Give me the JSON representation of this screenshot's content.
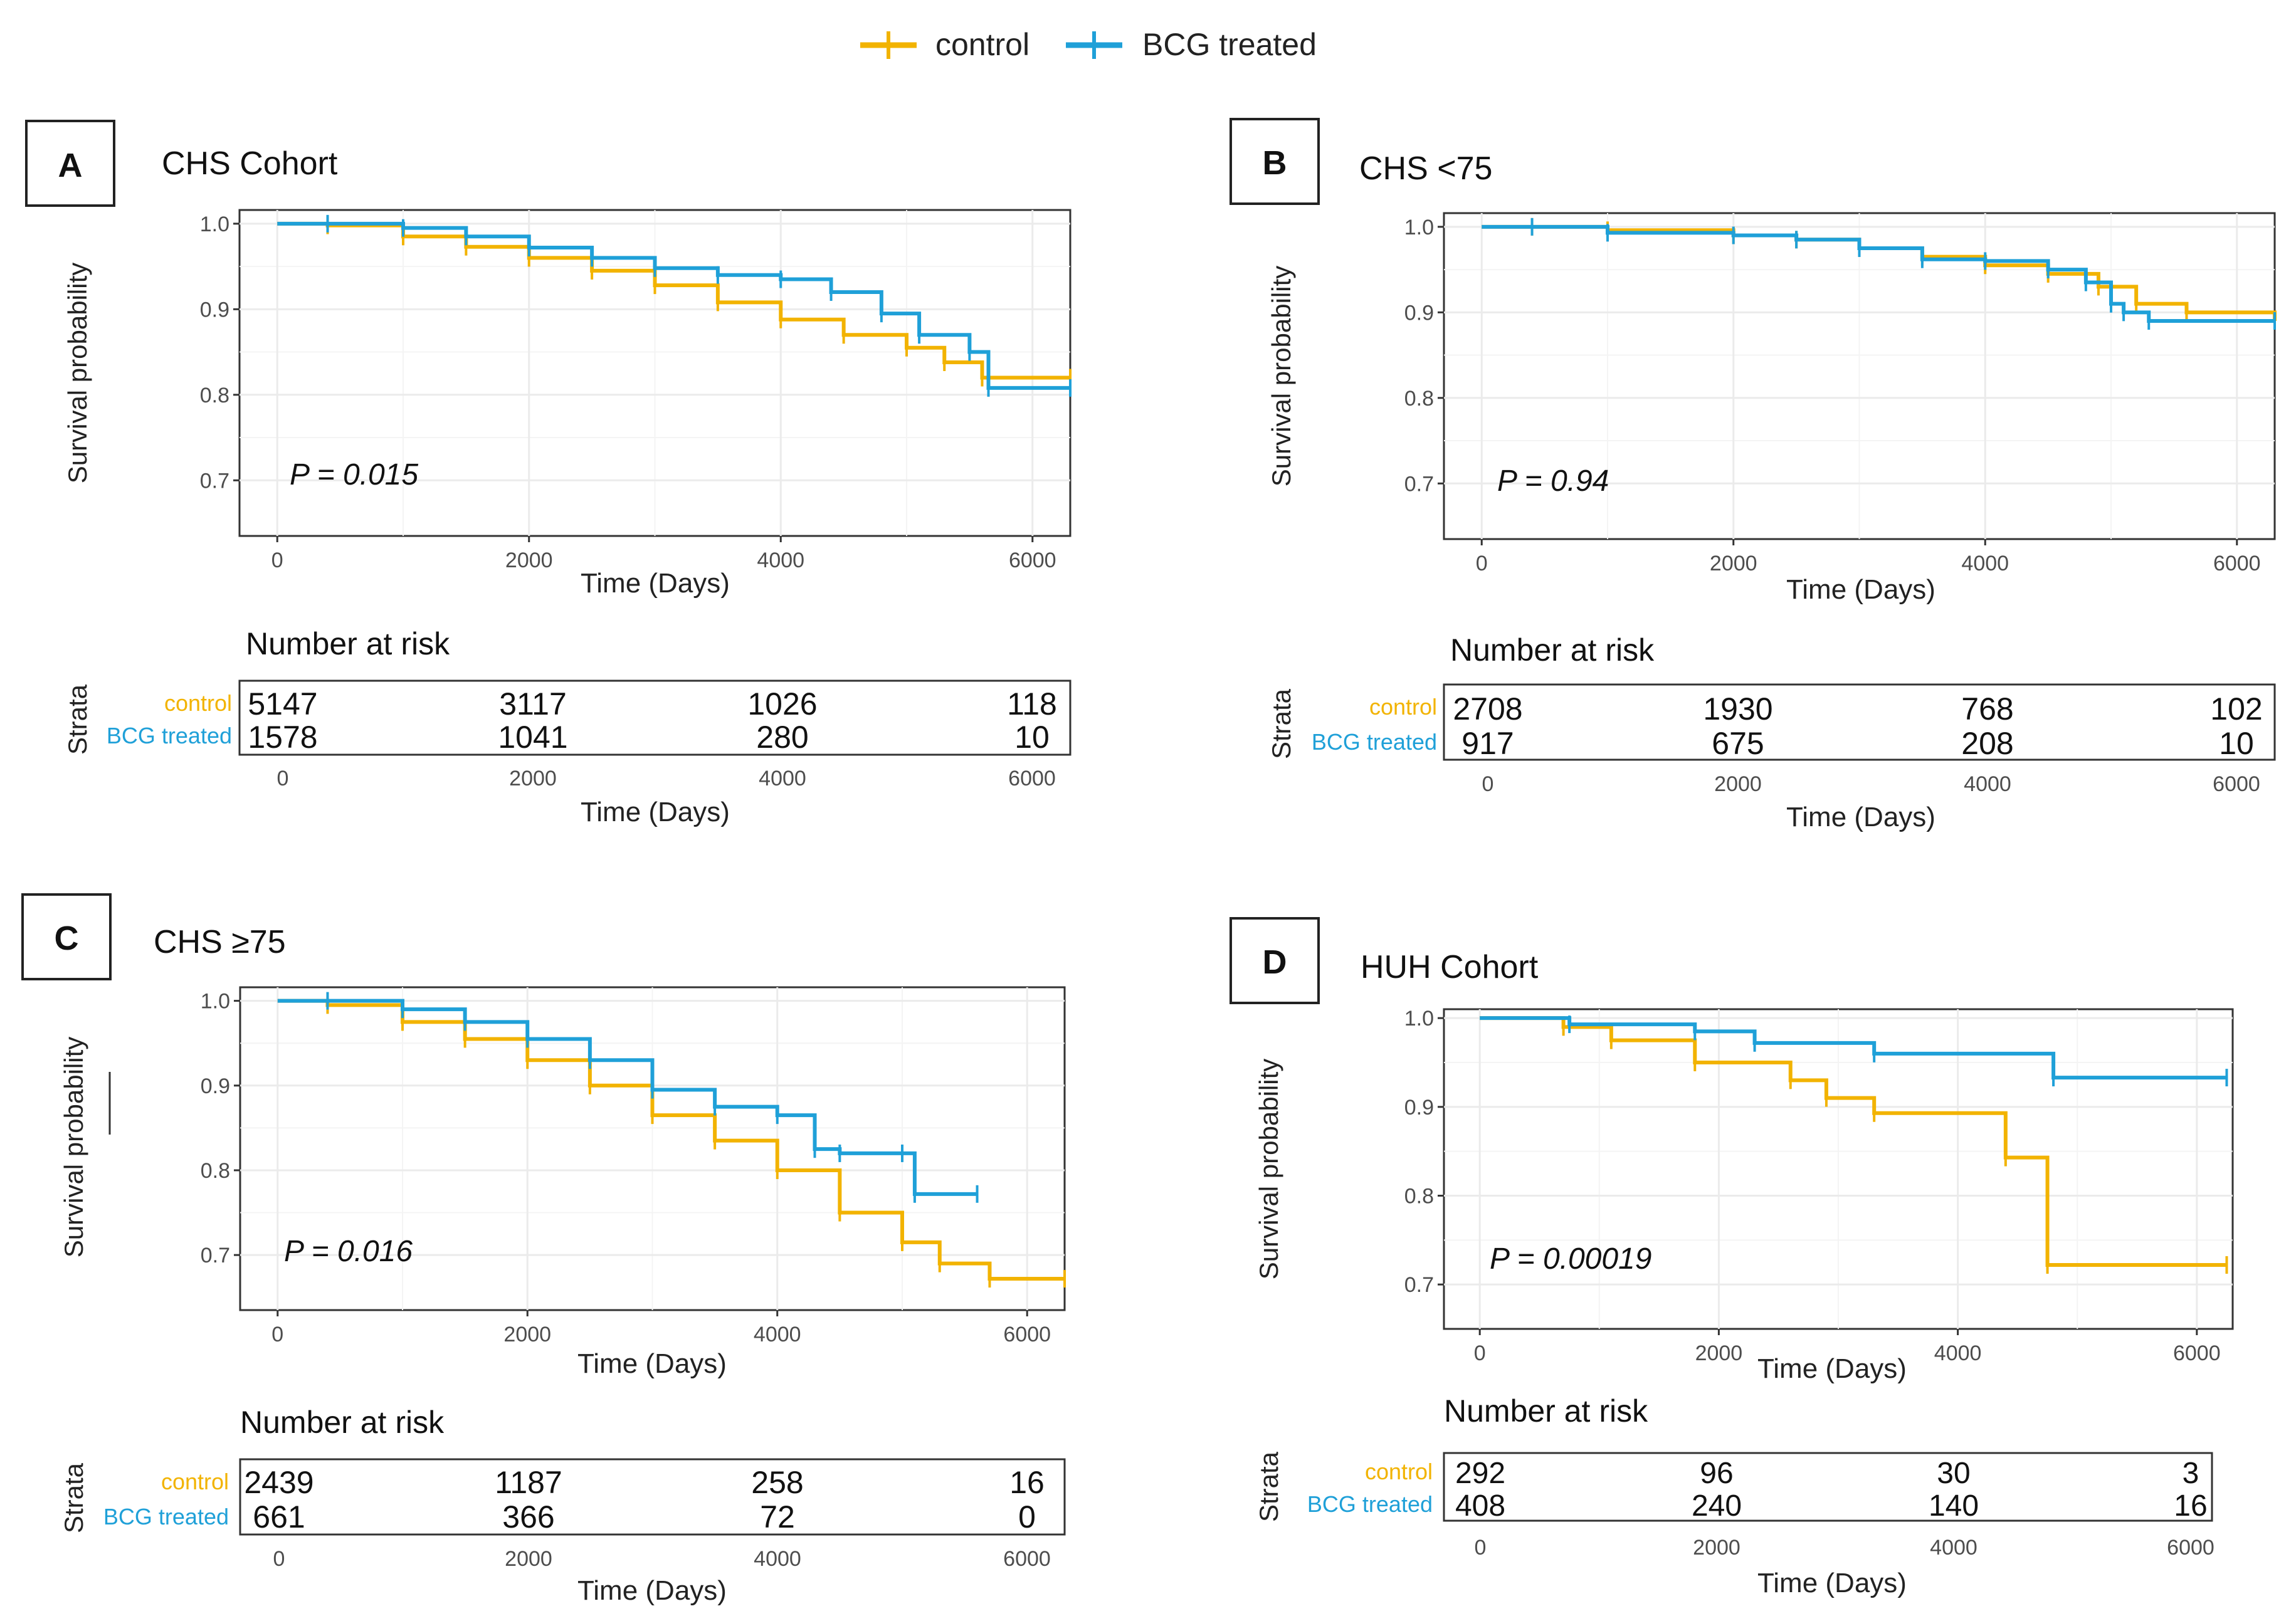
{
  "legend": {
    "items": [
      {
        "label": "control",
        "color": "#F2B300"
      },
      {
        "label": "BCG treated",
        "color": "#1FA0D8"
      }
    ]
  },
  "colors": {
    "control": "#F2B300",
    "bcg": "#1FA0D8",
    "grid": "#EBEBEB",
    "axis_text": "#4D4D4D",
    "frame": "#333333"
  },
  "risk_table_common": {
    "heading": "Number at risk",
    "strata_label": "Strata",
    "row_labels": [
      "control",
      "BCG treated"
    ],
    "xlabel": "Time (Days)",
    "x_ticks": [
      0,
      2000,
      4000,
      6000
    ]
  },
  "chart_data": [
    {
      "panel": "A",
      "type": "line",
      "title": "CHS Cohort",
      "xlabel": "Time (Days)",
      "ylabel": "Survival probability",
      "xlim": [
        -300,
        6300
      ],
      "ylim": [
        0.635,
        1.016
      ],
      "x_ticks": [
        0,
        2000,
        4000,
        6000
      ],
      "y_ticks": [
        1.0,
        0.9,
        0.8,
        0.7
      ],
      "p_value": "P = 0.015",
      "series": [
        {
          "name": "control",
          "x": [
            0,
            400,
            1000,
            1500,
            2000,
            2500,
            3000,
            3500,
            4000,
            4500,
            5000,
            5300,
            5600,
            6300
          ],
          "y": [
            1.0,
            0.998,
            0.985,
            0.973,
            0.96,
            0.945,
            0.928,
            0.908,
            0.888,
            0.87,
            0.855,
            0.838,
            0.82,
            0.82
          ]
        },
        {
          "name": "BCG treated",
          "x": [
            0,
            400,
            1000,
            1500,
            2000,
            2500,
            3000,
            3500,
            4000,
            4400,
            4800,
            5100,
            5500,
            5650,
            6300
          ],
          "y": [
            1.0,
            1.0,
            0.995,
            0.985,
            0.972,
            0.96,
            0.948,
            0.94,
            0.935,
            0.92,
            0.895,
            0.87,
            0.85,
            0.808,
            0.808
          ]
        }
      ],
      "risk_table": {
        "times": [
          0,
          2000,
          4000,
          6000
        ],
        "control": [
          5147,
          3117,
          1026,
          118
        ],
        "bcg_treated": [
          1578,
          1041,
          280,
          10
        ]
      }
    },
    {
      "panel": "B",
      "type": "line",
      "title": "CHS <75",
      "xlabel": "Time (Days)",
      "ylabel": "Survival probability",
      "xlim": [
        -300,
        6300
      ],
      "ylim": [
        0.635,
        1.016
      ],
      "x_ticks": [
        0,
        2000,
        4000,
        6000
      ],
      "y_ticks": [
        1.0,
        0.9,
        0.8,
        0.7
      ],
      "p_value": "P = 0.94",
      "series": [
        {
          "name": "control",
          "x": [
            0,
            400,
            1000,
            2000,
            2500,
            3000,
            3500,
            4000,
            4500,
            4900,
            5200,
            5600,
            6300
          ],
          "y": [
            1.0,
            1.0,
            0.996,
            0.99,
            0.985,
            0.975,
            0.965,
            0.955,
            0.945,
            0.93,
            0.91,
            0.9,
            0.89
          ]
        },
        {
          "name": "BCG treated",
          "x": [
            0,
            400,
            1000,
            2000,
            2500,
            3000,
            3500,
            4000,
            4500,
            4800,
            5000,
            5100,
            5300,
            6300
          ],
          "y": [
            1.0,
            1.0,
            0.993,
            0.99,
            0.985,
            0.975,
            0.962,
            0.96,
            0.95,
            0.935,
            0.91,
            0.9,
            0.89,
            0.89
          ]
        }
      ],
      "risk_table": {
        "times": [
          0,
          2000,
          4000,
          6000
        ],
        "control": [
          2708,
          1930,
          768,
          102
        ],
        "bcg_treated": [
          917,
          675,
          208,
          10
        ]
      }
    },
    {
      "panel": "C",
      "type": "line",
      "title": "CHS ≥75",
      "xlabel": "Time (Days)",
      "ylabel": "Survival probability",
      "xlim": [
        -300,
        6300
      ],
      "ylim": [
        0.635,
        1.016
      ],
      "x_ticks": [
        0,
        2000,
        4000,
        6000
      ],
      "y_ticks": [
        1.0,
        0.9,
        0.8,
        0.7
      ],
      "p_value": "P = 0.016",
      "series": [
        {
          "name": "control",
          "x": [
            0,
            400,
            1000,
            1500,
            2000,
            2500,
            3000,
            3500,
            4000,
            4500,
            5000,
            5300,
            5700,
            6300
          ],
          "y": [
            1.0,
            0.995,
            0.975,
            0.955,
            0.93,
            0.9,
            0.865,
            0.835,
            0.8,
            0.75,
            0.715,
            0.69,
            0.672,
            0.672
          ]
        },
        {
          "name": "BCG treated",
          "x": [
            0,
            400,
            1000,
            1500,
            2000,
            2500,
            3000,
            3500,
            4000,
            4300,
            4500,
            5000,
            5100,
            5600
          ],
          "y": [
            1.0,
            1.0,
            0.99,
            0.975,
            0.955,
            0.93,
            0.895,
            0.875,
            0.865,
            0.825,
            0.82,
            0.82,
            0.772,
            0.772
          ]
        }
      ],
      "risk_table": {
        "times": [
          0,
          2000,
          4000,
          6000
        ],
        "control": [
          2439,
          1187,
          258,
          16
        ],
        "bcg_treated": [
          661,
          366,
          72,
          0
        ]
      }
    },
    {
      "panel": "D",
      "type": "line",
      "title": "HUH Cohort",
      "xlabel": "Time (Days)",
      "ylabel": "Survival probability",
      "xlim": [
        -300,
        6300
      ],
      "ylim": [
        0.65,
        1.01
      ],
      "x_ticks": [
        0,
        2000,
        4000,
        6000
      ],
      "y_ticks": [
        1.0,
        0.9,
        0.8,
        0.7
      ],
      "p_value": "P = 0.00019",
      "series": [
        {
          "name": "control",
          "x": [
            0,
            700,
            1100,
            1800,
            2600,
            2900,
            3300,
            4400,
            4750,
            6250
          ],
          "y": [
            1.0,
            0.99,
            0.975,
            0.95,
            0.93,
            0.91,
            0.893,
            0.843,
            0.722,
            0.722
          ]
        },
        {
          "name": "BCG treated",
          "x": [
            0,
            750,
            1800,
            2300,
            3300,
            4800,
            6250
          ],
          "y": [
            1.0,
            0.993,
            0.985,
            0.972,
            0.96,
            0.933,
            0.933
          ]
        }
      ],
      "risk_table": {
        "times": [
          0,
          2000,
          4000,
          6000
        ],
        "control": [
          292,
          96,
          30,
          3
        ],
        "bcg_treated": [
          408,
          240,
          140,
          16
        ]
      }
    }
  ]
}
